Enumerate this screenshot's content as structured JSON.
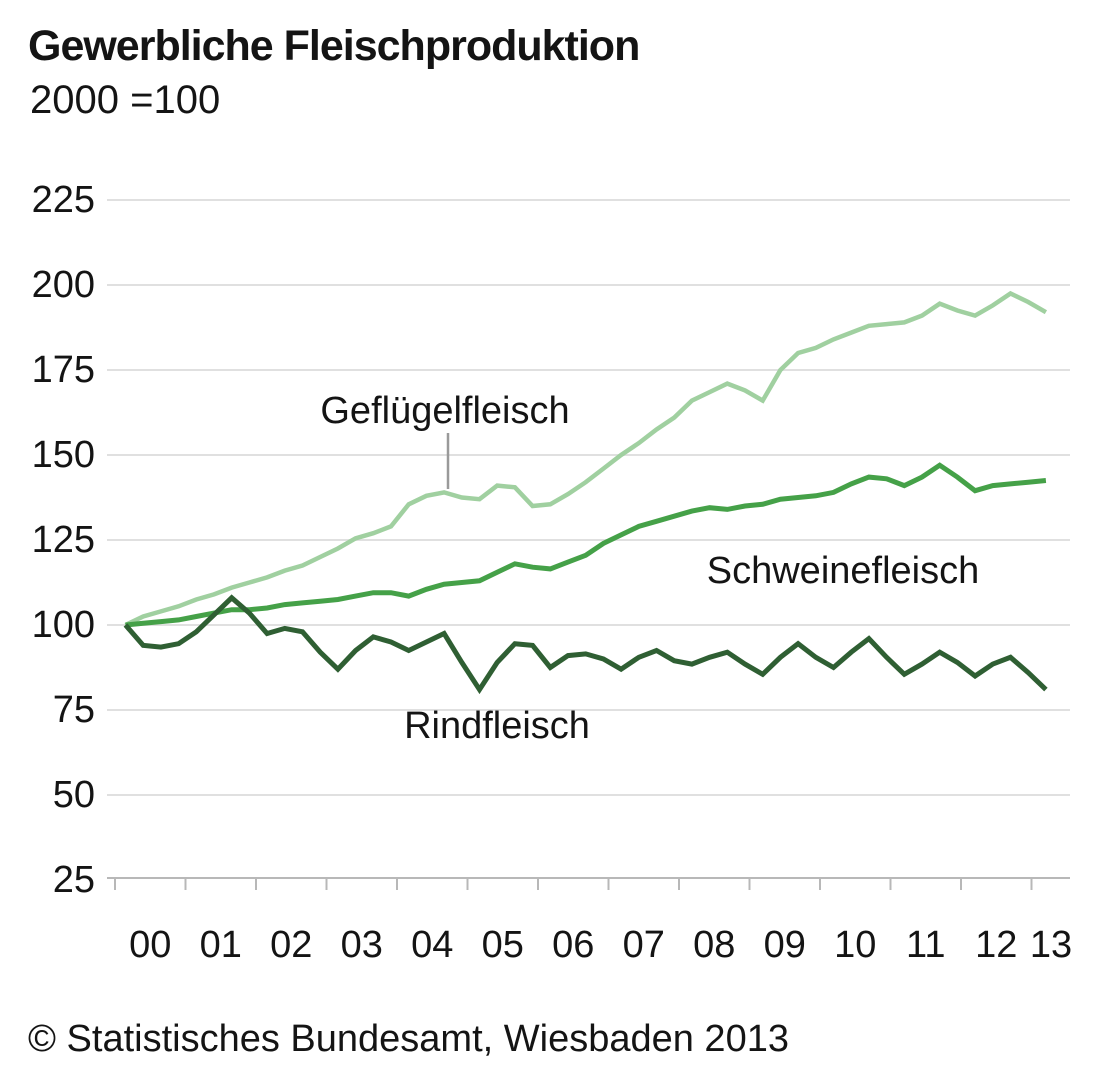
{
  "title": "Gewerbliche Fleischproduktion",
  "subtitle": "2000 =100",
  "footer": "© Statistisches Bundesamt, Wiesbaden 2013",
  "chart_data": {
    "type": "line",
    "title": "Gewerbliche Fleischproduktion",
    "base_note": "2000 =100",
    "frequency": "quarterly",
    "x_range": [
      "2000-Q1",
      "2013-Q1"
    ],
    "year_tick_labels": [
      "00",
      "01",
      "02",
      "03",
      "04",
      "05",
      "06",
      "07",
      "08",
      "09",
      "10",
      "11",
      "12",
      "13"
    ],
    "y_ticks": [
      225,
      200,
      175,
      150,
      125,
      100,
      75,
      50,
      25
    ],
    "ylim": [
      25,
      225
    ],
    "grid": "horizontal",
    "legend": "inline-labels",
    "colors": {
      "gefluegelfleisch": "#a0d0a0",
      "schweinefleisch": "#45a148",
      "rindfleisch": "#2f5f33",
      "gridline": "#e0e0e0",
      "axis": "#b8b8b8",
      "pointer": "#9a9a9a",
      "text": "#141414"
    },
    "series": [
      {
        "name": "Geflügelfleisch",
        "color": "#a0d0a0",
        "values": [
          100,
          102.5,
          104,
          105.5,
          107.5,
          109,
          111,
          112.5,
          114,
          116,
          117.5,
          120,
          122.5,
          125.5,
          127,
          129,
          135.5,
          138,
          139,
          137.5,
          137,
          141,
          140.5,
          135,
          135.5,
          138.5,
          142,
          146,
          150,
          153.5,
          157.5,
          161,
          166,
          168.5,
          171,
          169,
          166,
          175,
          180,
          181.5,
          184,
          186,
          188,
          188.5,
          189,
          191,
          194.5,
          192.5,
          191,
          194,
          197.5,
          195,
          192
        ]
      },
      {
        "name": "Schweinefleisch",
        "color": "#45a148",
        "values": [
          100,
          100.5,
          101,
          101.5,
          102.5,
          103.5,
          104.5,
          104.5,
          105,
          106,
          106.5,
          107,
          107.5,
          108.5,
          109.5,
          109.5,
          108.5,
          110.5,
          112,
          112.5,
          113,
          115.5,
          118,
          117,
          116.5,
          118.5,
          120.5,
          124,
          126.5,
          129,
          130.5,
          132,
          133.5,
          134.5,
          134,
          135,
          135.5,
          137,
          137.5,
          138,
          139,
          141.5,
          143.5,
          143,
          141,
          143.5,
          147,
          143.5,
          139.5,
          141,
          141.5,
          142,
          142.5
        ]
      },
      {
        "name": "Rindfleisch",
        "color": "#2f5f33",
        "values": [
          100,
          94,
          93.5,
          94.5,
          98,
          103,
          108,
          103.5,
          97.5,
          99,
          98,
          92,
          87,
          92.5,
          96.5,
          95,
          92.5,
          95,
          97.5,
          89,
          81,
          89,
          94.5,
          94,
          87.5,
          91,
          91.5,
          90,
          87,
          90.5,
          92.5,
          89.5,
          88.5,
          90.5,
          92,
          88.5,
          85.5,
          90.5,
          94.5,
          90.5,
          87.5,
          92,
          96,
          90.5,
          85.5,
          88.5,
          92,
          89,
          85,
          88.5,
          90.5,
          86,
          81
        ]
      }
    ]
  }
}
